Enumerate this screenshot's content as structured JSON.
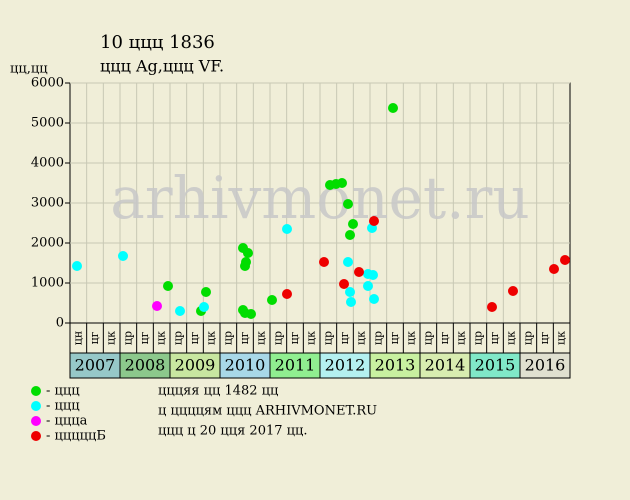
{
  "chart_data": {
    "type": "scatter",
    "title": "10 ццц 1836",
    "subtitle": "ццц Ag,ццц VF.",
    "y_label": "цц,цц",
    "watermark": "arhivmonet.ru",
    "xlim": [
      2007,
      2017
    ],
    "ylim": [
      0,
      6000
    ],
    "yticks": [
      0,
      1000,
      2000,
      3000,
      4000,
      5000,
      6000
    ],
    "grid": true,
    "periods": [
      "цн",
      "цг",
      "цк",
      "цр",
      "цг",
      "цк",
      "цр",
      "цг",
      "цк",
      "цр",
      "цг",
      "цк",
      "цр",
      "цг",
      "цк",
      "цр",
      "цг",
      "цк",
      "цр",
      "цг",
      "цк",
      "цр",
      "цг",
      "цк",
      "цр",
      "цг",
      "цк",
      "цр",
      "цг",
      "цк"
    ],
    "years": [
      "2007",
      "2008",
      "2009",
      "2010",
      "2011",
      "2012",
      "2013",
      "2014",
      "2015",
      "2016"
    ],
    "year_colors": [
      "#96c8c8",
      "#8cc88c",
      "#c8e6a0",
      "#a8d8e8",
      "#90ee90",
      "#b4f0f0",
      "#c8f0a0",
      "#d8ecb0",
      "#80e8c8",
      "#e0e0d0"
    ],
    "series": [
      {
        "name": "- ццц",
        "color": "#00dd00",
        "x": [
          2008.96,
          2009.62,
          2009.72,
          2010.46,
          2010.56,
          2010.52,
          2010.5,
          2010.46,
          2010.5,
          2010.62,
          2011.04,
          2012.2,
          2012.32,
          2012.44,
          2012.56,
          2012.6,
          2012.66,
          2013.46
        ],
        "values": [
          925,
          300,
          775,
          1875,
          1750,
          1525,
          1425,
          325,
          250,
          225,
          575,
          3450,
          3475,
          3500,
          2975,
          2200,
          2475,
          5375
        ]
      },
      {
        "name": "- ццц",
        "color": "#00ffff",
        "x": [
          2007.14,
          2008.06,
          2009.2,
          2009.68,
          2011.34,
          2012.56,
          2012.6,
          2012.62,
          2012.96,
          2012.96,
          2013.06,
          2013.04,
          2013.08
        ],
        "values": [
          1425,
          1675,
          300,
          400,
          2350,
          1525,
          775,
          525,
          925,
          1225,
          1200,
          2375,
          600
        ]
      },
      {
        "name": "- ццца",
        "color": "#ff00ff",
        "x": [
          2008.74
        ],
        "values": [
          425
        ]
      },
      {
        "name": "- цццццБ",
        "color": "#ee0000",
        "x": [
          2011.34,
          2012.08,
          2012.48,
          2012.78,
          2013.08,
          2015.44,
          2015.86,
          2016.68,
          2016.9
        ],
        "values": [
          725,
          1525,
          975,
          1275,
          2550,
          400,
          800,
          1350,
          1575
        ]
      }
    ],
    "notes": [
      "цццяя цц 1482 цц",
      "ц ццццям ццц ARHIVMONET.RU",
      "ццц ц 20 цця 2017 цц."
    ]
  }
}
